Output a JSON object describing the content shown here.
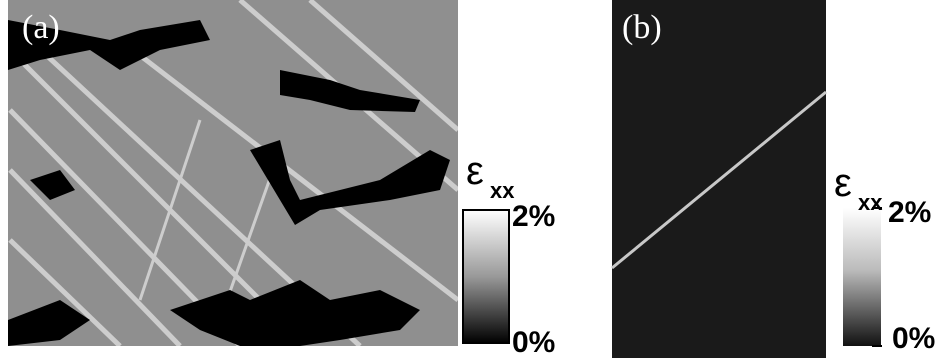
{
  "panels": [
    {
      "label": "(a)",
      "colorbar": {
        "symbol": "ε",
        "subscript": "xx",
        "max": "2%",
        "min": "0%"
      }
    },
    {
      "label": "(b)",
      "colorbar": {
        "symbol": "ε",
        "subscript": "xx",
        "max": "2%",
        "min": "0%"
      }
    }
  ]
}
